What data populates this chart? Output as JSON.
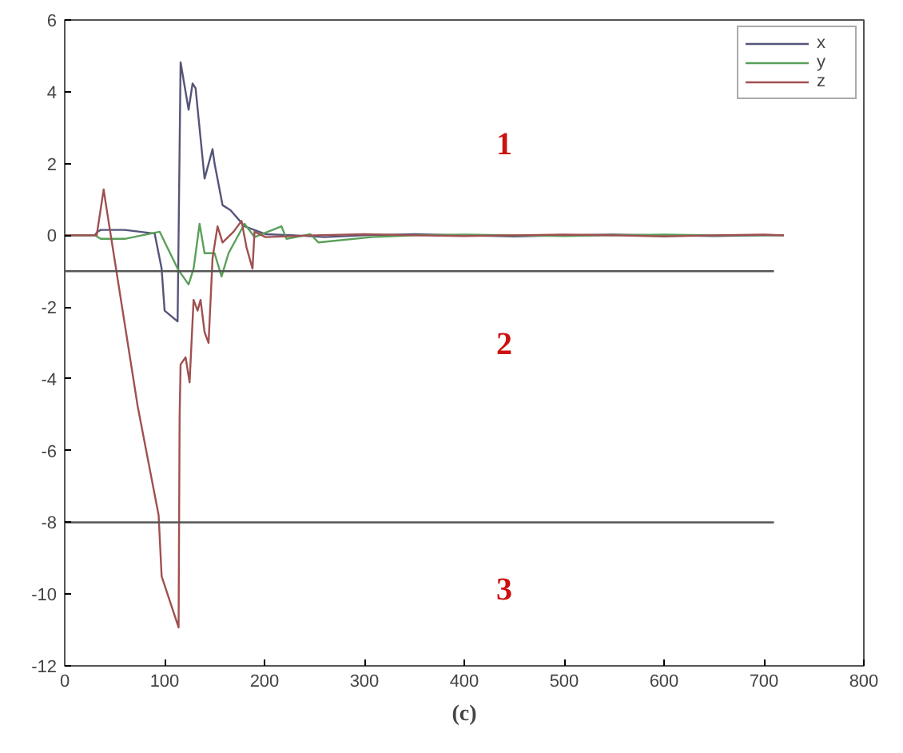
{
  "chart_data": {
    "type": "line",
    "xlim": [
      0,
      800
    ],
    "ylim": [
      -12,
      6
    ],
    "xticks": [
      0,
      100,
      200,
      300,
      400,
      500,
      600,
      700,
      800
    ],
    "yticks": [
      -12,
      -10,
      -8,
      -6,
      -4,
      -2,
      0,
      2,
      4,
      6
    ],
    "grid": false,
    "legend": "top right",
    "marker": "none",
    "line_style": "solid",
    "series": [
      {
        "name": "x",
        "color": "#55557a",
        "x": [
          0,
          30,
          33,
          36,
          60,
          90,
          97,
          100,
          113,
          116,
          124,
          128,
          131,
          140,
          148,
          150,
          158,
          166,
          180,
          201,
          230,
          260,
          300,
          350,
          400,
          450,
          500,
          550,
          600,
          650,
          700,
          720
        ],
        "values": [
          0,
          0,
          0.1,
          0.15,
          0.15,
          0.05,
          -0.93,
          -2.1,
          -2.4,
          4.82,
          3.5,
          4.23,
          4.1,
          1.58,
          2.4,
          2.0,
          0.84,
          0.7,
          0.25,
          0.03,
          0,
          -0.05,
          0,
          0.03,
          0,
          -0.03,
          0,
          0.02,
          0,
          -0.02,
          0,
          0
        ]
      },
      {
        "name": "y",
        "color": "#5aa05a",
        "x": [
          0,
          30,
          36,
          60,
          95,
          113,
          124,
          129,
          135,
          140,
          150,
          157,
          164,
          180,
          190,
          217,
          222,
          246,
          254,
          307,
          350,
          400,
          450,
          500,
          550,
          600,
          650,
          700,
          720
        ],
        "values": [
          0,
          0,
          -0.1,
          -0.1,
          0.1,
          -0.93,
          -1.37,
          -0.93,
          0.32,
          -0.5,
          -0.5,
          -1.15,
          -0.5,
          0.32,
          -0.05,
          0.25,
          -0.1,
          0.03,
          -0.2,
          -0.05,
          0,
          0.02,
          0,
          -0.02,
          0,
          0.02,
          0,
          0,
          0
        ]
      },
      {
        "name": "z",
        "color": "#a05050",
        "x": [
          0,
          32,
          39,
          41,
          73,
          94,
          97,
          114,
          115,
          116,
          121,
          125,
          129,
          133,
          136,
          140,
          144,
          148,
          153,
          158,
          169,
          177,
          182,
          188,
          190,
          201,
          250,
          300,
          350,
          400,
          450,
          500,
          550,
          600,
          650,
          700,
          720
        ],
        "values": [
          0,
          0,
          1.28,
          0.9,
          -4.76,
          -7.8,
          -9.5,
          -10.93,
          -5.1,
          -3.6,
          -3.4,
          -4.1,
          -1.8,
          -2.1,
          -1.8,
          -2.7,
          -3.0,
          -0.63,
          0.25,
          -0.2,
          0.1,
          0.4,
          -0.34,
          -0.93,
          0.1,
          -0.05,
          0,
          0.03,
          0,
          -0.02,
          0,
          0.02,
          0,
          -0.03,
          0,
          0.02,
          0
        ]
      },
      {
        "color": "#555555",
        "x": [
          0,
          710
        ],
        "values": [
          -1,
          -1
        ]
      },
      {
        "color": "#555555",
        "x": [
          0,
          710
        ],
        "values": [
          -8,
          -8
        ]
      }
    ],
    "annotations": [
      "1",
      "2",
      "3",
      "(c)"
    ]
  }
}
